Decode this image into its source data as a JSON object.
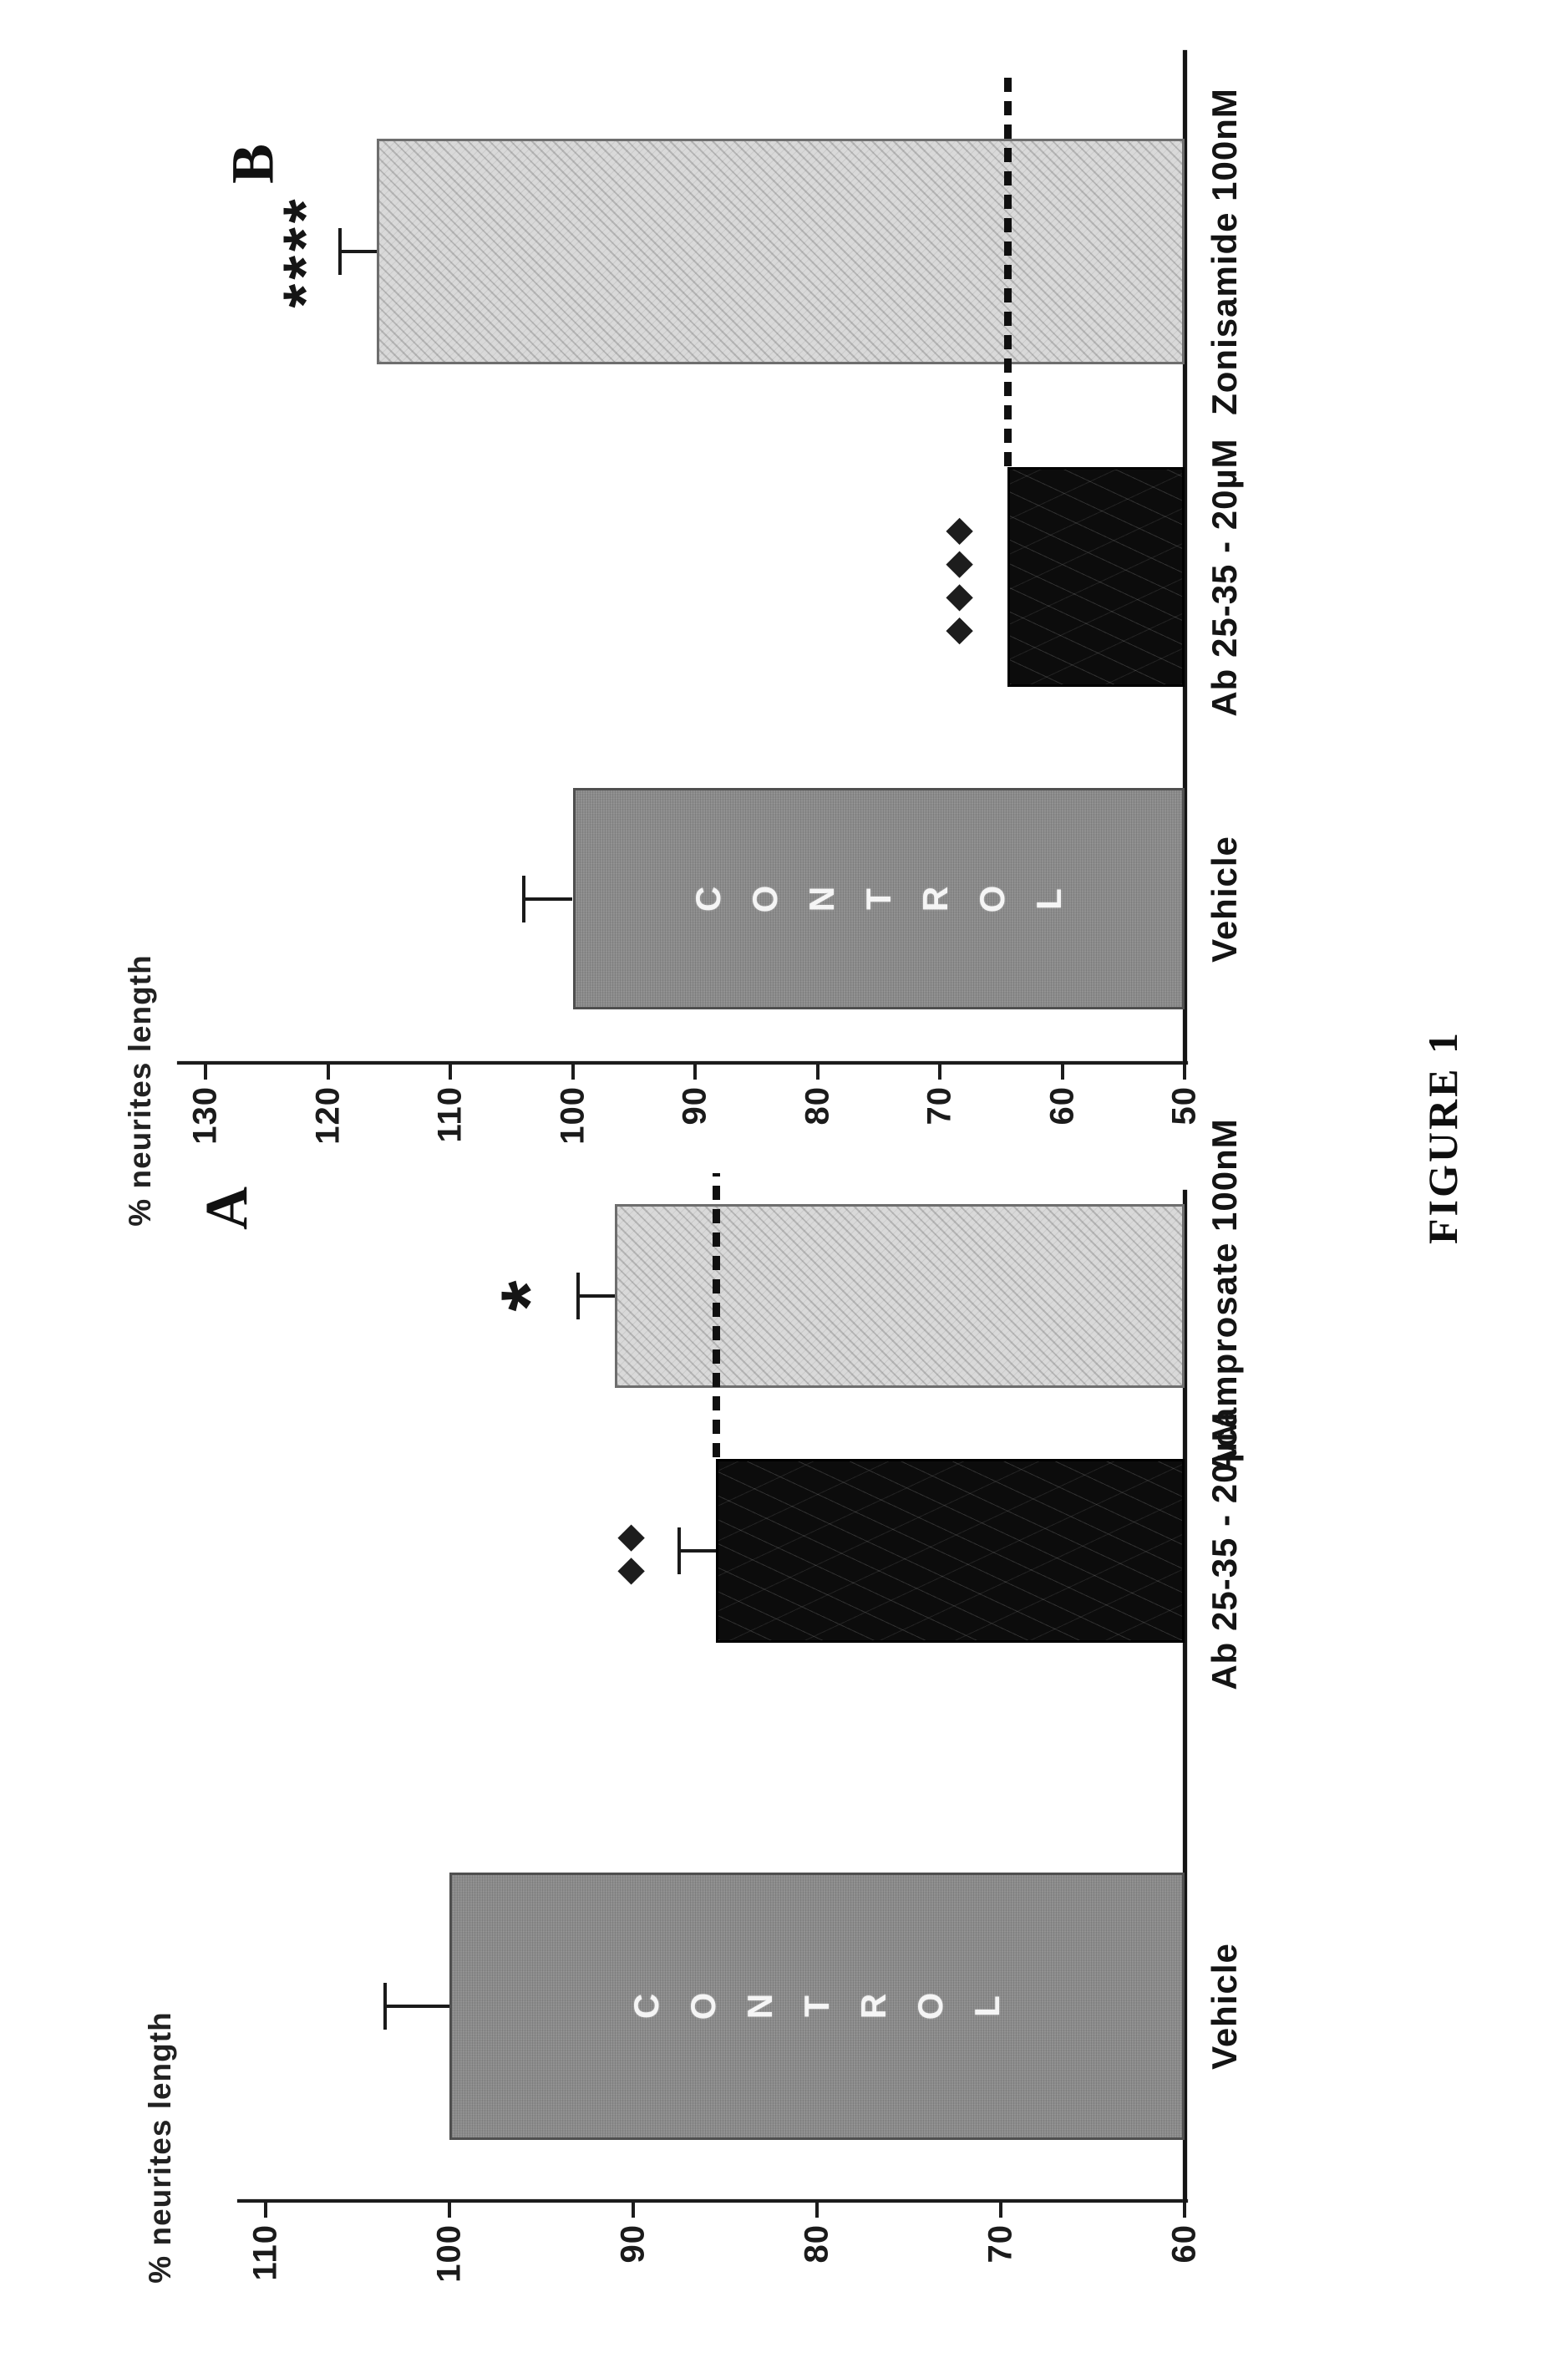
{
  "figure": {
    "caption": "FIGURE 1",
    "ink_color": "#1a1a1a",
    "background_color": "#ffffff"
  },
  "colors": {
    "control_bar": "#8c8c8c",
    "lesion_bar": "#0c0c0c",
    "treatment_bar": "#d9d9d9"
  },
  "chart_data": [
    {
      "id": "A",
      "panel_label": "A",
      "type": "bar",
      "ylabel": "% neurites length",
      "ylim": [
        60,
        110
      ],
      "yticks": [
        110,
        100,
        90,
        80,
        70,
        60
      ],
      "grid": false,
      "legend": "none",
      "categories": [
        "Vehicle",
        "Ab 25-35 - 20µM",
        "Acamprosate 100nM"
      ],
      "bars": [
        {
          "label": "Vehicle",
          "value": 100,
          "error": 3.5,
          "style": "control",
          "inner_text": "CONTROL",
          "annotation": ""
        },
        {
          "label": "Ab 25-35 - 20µM",
          "value": 85.5,
          "error": 2,
          "style": "black",
          "inner_text": "",
          "annotation": "◆◆"
        },
        {
          "label": "Acamprosate 100nM",
          "value": 91,
          "error": 2,
          "style": "hatched",
          "inner_text": "",
          "annotation": "*"
        }
      ],
      "dashed_line": {
        "value": 85.5,
        "meaning": "Ab 25-35 lesion level"
      }
    },
    {
      "id": "B",
      "panel_label": "B",
      "type": "bar",
      "ylabel": "% neurites length",
      "ylim": [
        50,
        130
      ],
      "yticks": [
        130,
        120,
        110,
        100,
        90,
        80,
        70,
        60,
        50
      ],
      "grid": false,
      "legend": "none",
      "categories": [
        "Vehicle",
        "Ab 25-35 - 20µM",
        "Zonisamide 100nM"
      ],
      "bars": [
        {
          "label": "Vehicle",
          "value": 100,
          "error": 4,
          "style": "control",
          "inner_text": "CONTROL",
          "annotation": ""
        },
        {
          "label": "Ab 25-35 - 20µM",
          "value": 64.5,
          "error": 0,
          "style": "black",
          "inner_text": "",
          "annotation": "◆◆◆◆"
        },
        {
          "label": "Zonisamide 100nM",
          "value": 116,
          "error": 3,
          "style": "hatched",
          "inner_text": "",
          "annotation": "****"
        }
      ],
      "dashed_line": {
        "value": 64.5,
        "meaning": "Ab 25-35 lesion level"
      }
    }
  ]
}
